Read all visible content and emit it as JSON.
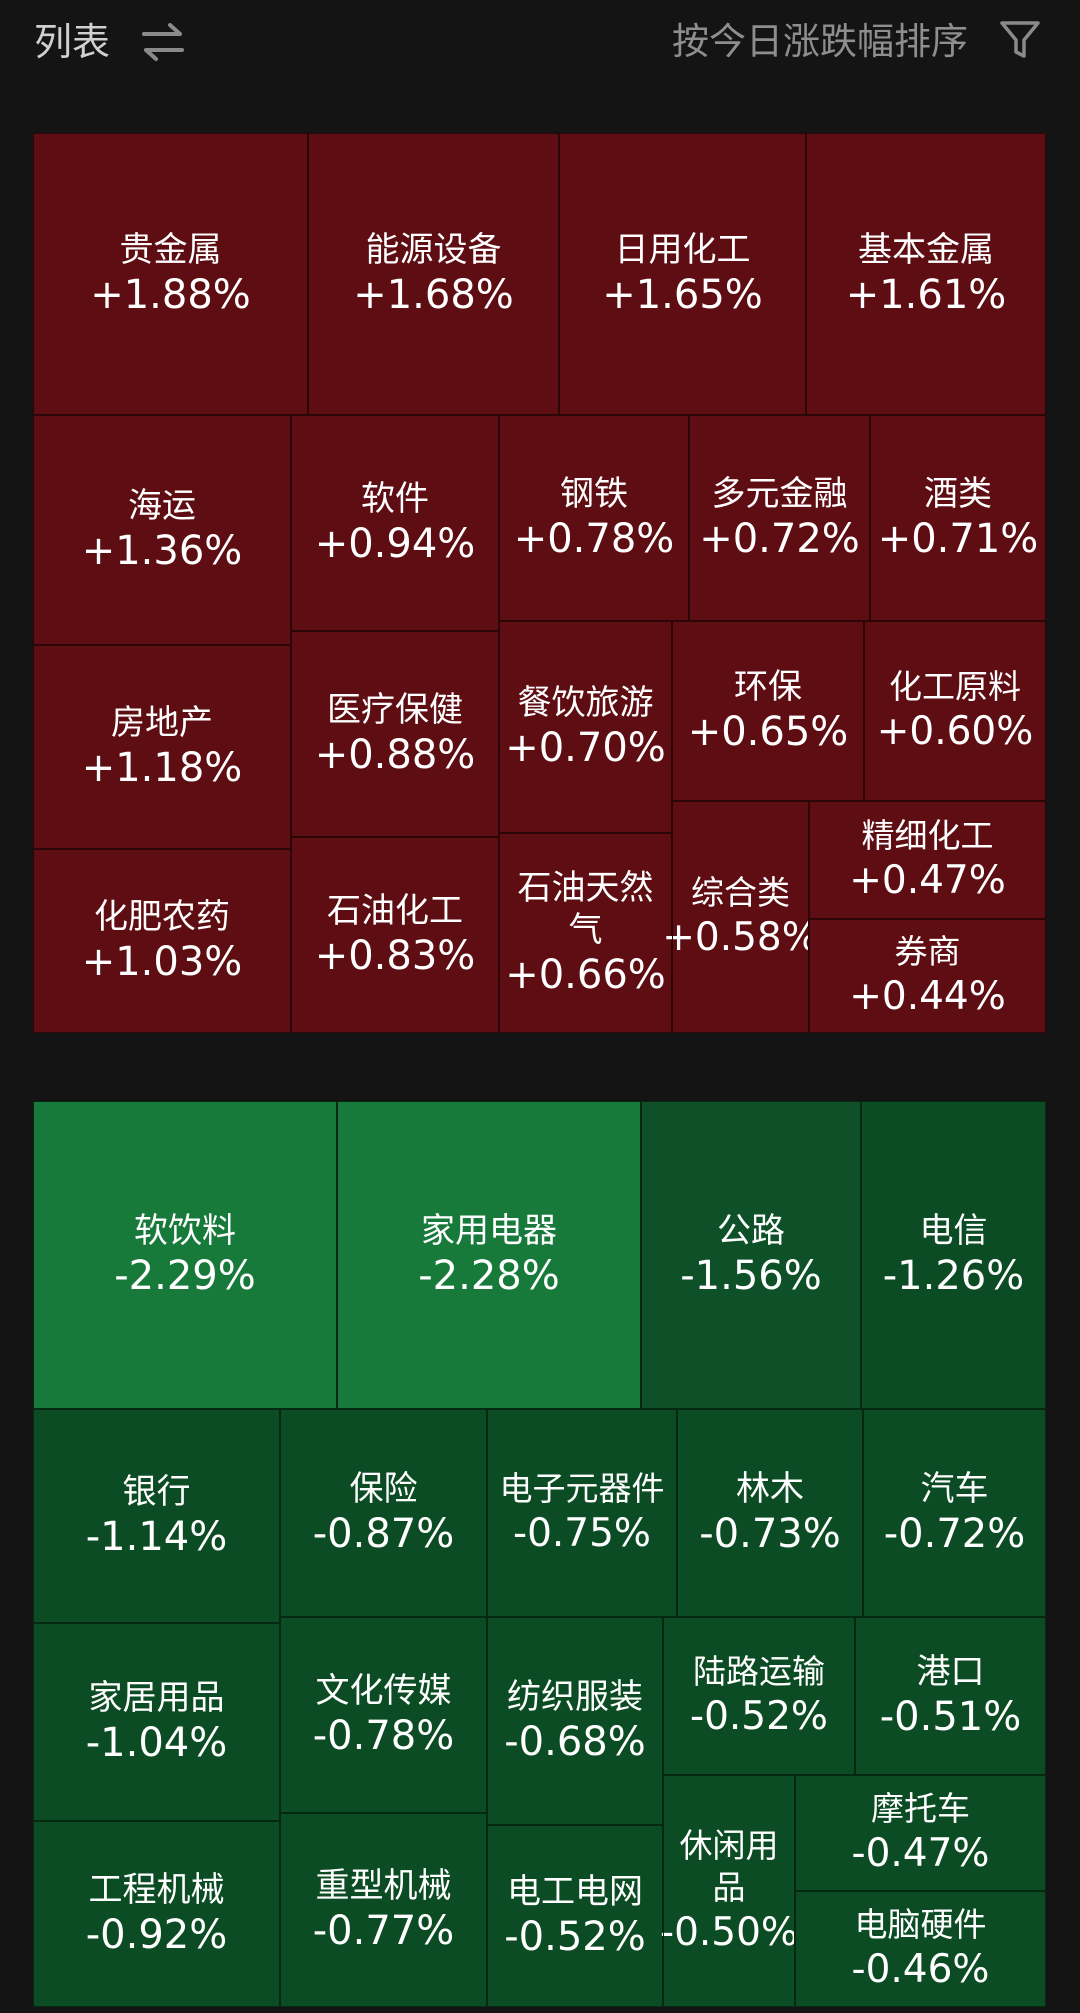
{
  "header": {
    "title": "列表",
    "sort_label": "按今日涨跌幅排序",
    "swap_icon": "swap-arrows-icon",
    "filter_icon": "filter-funnel-icon"
  },
  "colors": {
    "background": "#141414",
    "gain": "#5e0d13",
    "loss": "#0c4c24",
    "loss_strong": "#177a3b"
  },
  "gainers": [
    {
      "name": "贵金属",
      "change": "+1.88%"
    },
    {
      "name": "能源设备",
      "change": "+1.68%"
    },
    {
      "name": "日用化工",
      "change": "+1.65%"
    },
    {
      "name": "基本金属",
      "change": "+1.61%"
    },
    {
      "name": "海运",
      "change": "+1.36%"
    },
    {
      "name": "软件",
      "change": "+0.94%"
    },
    {
      "name": "钢铁",
      "change": "+0.78%"
    },
    {
      "name": "多元金融",
      "change": "+0.72%"
    },
    {
      "name": "酒类",
      "change": "+0.71%"
    },
    {
      "name": "房地产",
      "change": "+1.18%"
    },
    {
      "name": "医疗保健",
      "change": "+0.88%"
    },
    {
      "name": "餐饮旅游",
      "change": "+0.70%"
    },
    {
      "name": "环保",
      "change": "+0.65%"
    },
    {
      "name": "化工原料",
      "change": "+0.60%"
    },
    {
      "name": "化肥农药",
      "change": "+1.03%"
    },
    {
      "name": "石油化工",
      "change": "+0.83%"
    },
    {
      "name": "石油天然气",
      "change": "+0.66%"
    },
    {
      "name": "综合类",
      "change": "+0.58%"
    },
    {
      "name": "精细化工",
      "change": "+0.47%"
    },
    {
      "name": "券商",
      "change": "+0.44%"
    }
  ],
  "losers": [
    {
      "name": "软饮料",
      "change": "-2.29%"
    },
    {
      "name": "家用电器",
      "change": "-2.28%"
    },
    {
      "name": "公路",
      "change": "-1.56%"
    },
    {
      "name": "电信",
      "change": "-1.26%"
    },
    {
      "name": "银行",
      "change": "-1.14%"
    },
    {
      "name": "保险",
      "change": "-0.87%"
    },
    {
      "name": "电子元器件",
      "change": "-0.75%"
    },
    {
      "name": "林木",
      "change": "-0.73%"
    },
    {
      "name": "汽车",
      "change": "-0.72%"
    },
    {
      "name": "家居用品",
      "change": "-1.04%"
    },
    {
      "name": "文化传媒",
      "change": "-0.78%"
    },
    {
      "name": "纺织服装",
      "change": "-0.68%"
    },
    {
      "name": "陆路运输",
      "change": "-0.52%"
    },
    {
      "name": "港口",
      "change": "-0.51%"
    },
    {
      "name": "工程机械",
      "change": "-0.92%"
    },
    {
      "name": "重型机械",
      "change": "-0.77%"
    },
    {
      "name": "电工电网",
      "change": "-0.52%"
    },
    {
      "name": "休闲用品",
      "change": "-0.50%"
    },
    {
      "name": "摩托车",
      "change": "-0.47%"
    },
    {
      "name": "电脑硬件",
      "change": "-0.46%"
    }
  ]
}
